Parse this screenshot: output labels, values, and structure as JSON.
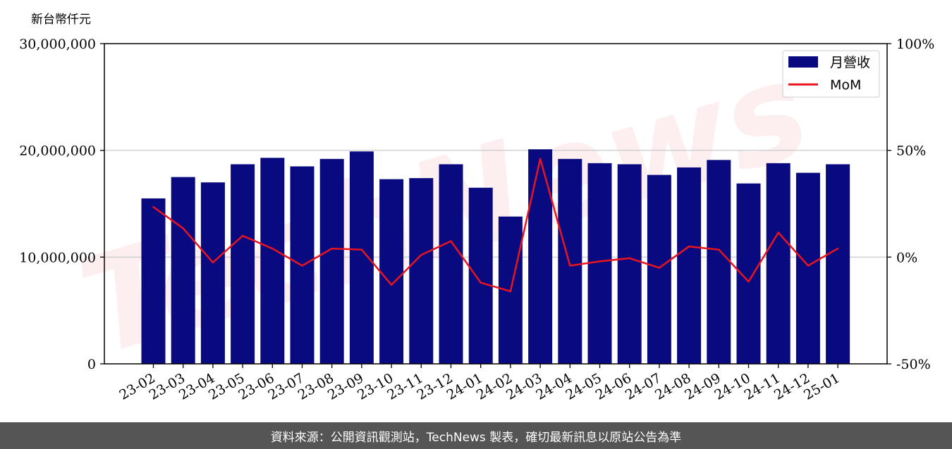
{
  "watermark_text": "TechNews",
  "footer_text": "資料來源：公開資訊觀測站，TechNews 製表，確切最新訊息以原站公告為準",
  "colors": {
    "bar": "#0a0a80",
    "line": "#e8141e",
    "footer_bg": "#555555",
    "grid": "#d0d0d0"
  },
  "chart_data": {
    "type": "bar",
    "unit_label": "新台幣仟元",
    "categories": [
      "23-02",
      "23-03",
      "23-04",
      "23-05",
      "23-06",
      "23-07",
      "23-08",
      "23-09",
      "23-10",
      "23-11",
      "23-12",
      "24-01",
      "24-02",
      "24-03",
      "24-04",
      "24-05",
      "24-06",
      "24-07",
      "24-08",
      "24-09",
      "24-10",
      "24-11",
      "24-12",
      "25-01"
    ],
    "series": [
      {
        "name": "月營收",
        "type": "bar",
        "axis": "left",
        "values": [
          15500000,
          17500000,
          17000000,
          18700000,
          19300000,
          18500000,
          19200000,
          19900000,
          17300000,
          17400000,
          18700000,
          16500000,
          13800000,
          20100000,
          19200000,
          18800000,
          18700000,
          17700000,
          18400000,
          19100000,
          16900000,
          18800000,
          17900000,
          18700000
        ]
      },
      {
        "name": "MoM",
        "type": "line",
        "axis": "right",
        "values": [
          23.5,
          13.5,
          -2.5,
          10,
          4,
          -4,
          4,
          3.5,
          -13,
          1,
          7.5,
          -12,
          -16,
          46,
          -4,
          -2,
          -0.5,
          -5,
          5,
          3.5,
          -11.5,
          11.5,
          -4,
          4
        ]
      }
    ],
    "left_axis": {
      "ylim": [
        0,
        30000000
      ],
      "ticks": [
        0,
        10000000,
        20000000,
        30000000
      ],
      "tick_labels": [
        "0",
        "10,000,000",
        "20,000,000",
        "30,000,000"
      ]
    },
    "right_axis": {
      "ylim": [
        -50,
        100
      ],
      "ticks": [
        -50,
        0,
        50,
        100
      ],
      "tick_labels": [
        "-50%",
        "0%",
        "50%",
        "100%"
      ]
    },
    "grid": "horizontal",
    "legend_position": "top-right"
  }
}
